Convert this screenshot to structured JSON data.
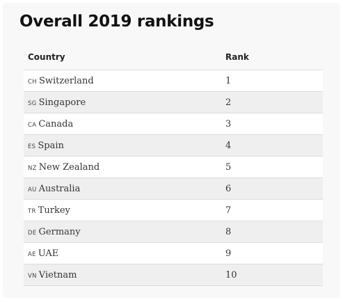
{
  "title": "Overall 2019 rankings",
  "table": {
    "headers": {
      "country": "Country",
      "rank": "Rank"
    },
    "rows": [
      {
        "code": "CH",
        "country": "Switzerland",
        "rank": "1"
      },
      {
        "code": "SG",
        "country": "Singapore",
        "rank": "2"
      },
      {
        "code": "CA",
        "country": "Canada",
        "rank": "3"
      },
      {
        "code": "ES",
        "country": "Spain",
        "rank": "4"
      },
      {
        "code": "NZ",
        "country": "New Zealand",
        "rank": "5"
      },
      {
        "code": "AU",
        "country": "Australia",
        "rank": "6"
      },
      {
        "code": "TR",
        "country": "Turkey",
        "rank": "7"
      },
      {
        "code": "DE",
        "country": "Germany",
        "rank": "8"
      },
      {
        "code": "AE",
        "country": "UAE",
        "rank": "9"
      },
      {
        "code": "VN",
        "country": "Vietnam",
        "rank": "10"
      }
    ]
  }
}
